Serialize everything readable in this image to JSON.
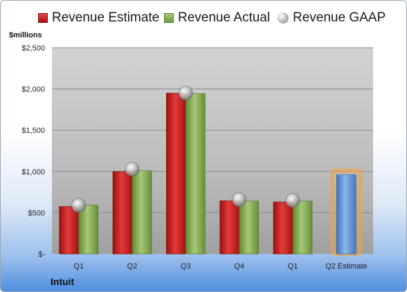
{
  "chart_data": {
    "type": "bar",
    "ylabel": "$millions",
    "company": "Intuit",
    "categories": [
      "Q1",
      "Q2",
      "Q3",
      "Q4",
      "Q1",
      "Q2 Estimate"
    ],
    "ytick_labels": [
      "$-",
      "$500",
      "$1,000",
      "$1,500",
      "$2,000",
      "$2,500"
    ],
    "yticks": [
      0,
      500,
      1000,
      1500,
      2000,
      2500
    ],
    "ylim": [
      0,
      2500
    ],
    "legend_position": "top",
    "series": [
      {
        "name": "Revenue Estimate",
        "color": "#c8201f",
        "values": [
          575,
          1000,
          1950,
          645,
          630,
          null
        ]
      },
      {
        "name": "Revenue Actual",
        "color": "#8bb05a",
        "values": [
          590,
          1010,
          1945,
          640,
          640,
          960
        ]
      },
      {
        "name": "Revenue GAAP",
        "color": "#a8a8a8",
        "values": [
          590,
          1030,
          1950,
          660,
          650,
          null
        ]
      }
    ],
    "estimate_bar_color": "#6a9fd8",
    "highlight_color": "#f5a040"
  }
}
